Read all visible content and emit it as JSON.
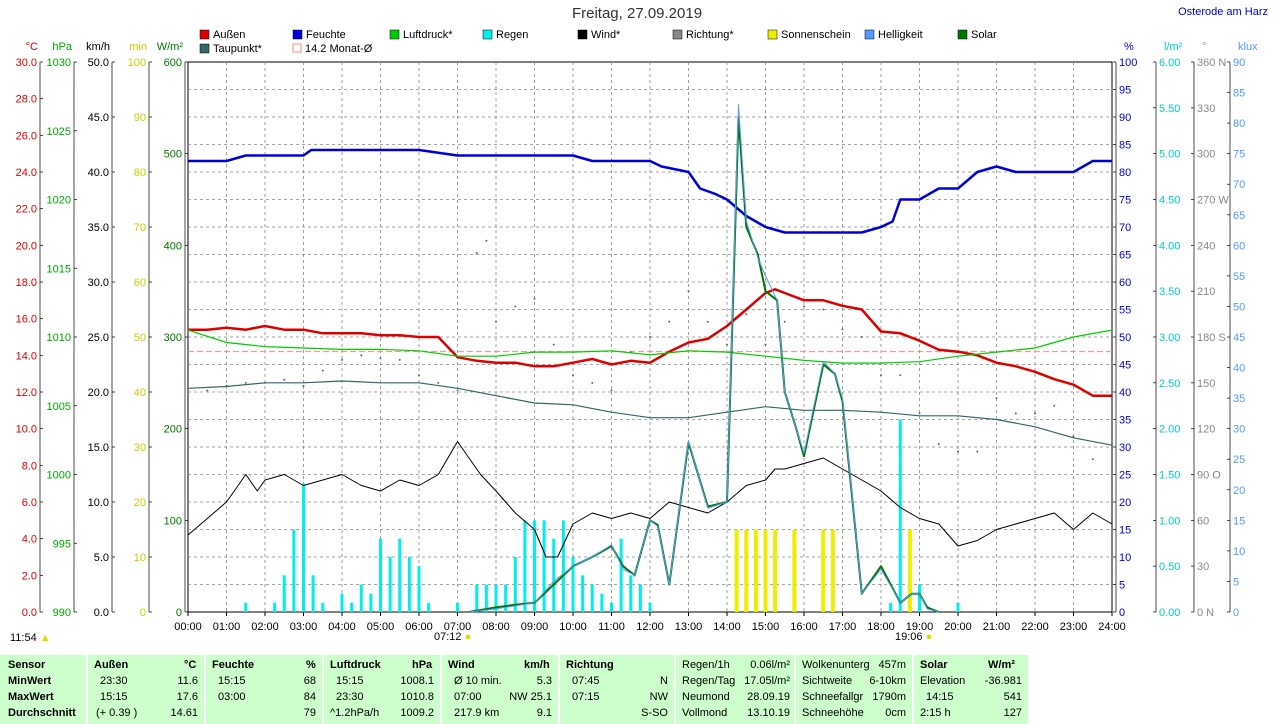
{
  "title": "Freitag, 27.09.2019",
  "location": "Osterode am Harz",
  "legend": [
    {
      "label": "Außen",
      "color": "#dd0000"
    },
    {
      "label": "Feuchte",
      "color": "#0000dd"
    },
    {
      "label": "Luftdruck*",
      "color": "#00cc00"
    },
    {
      "label": "Regen",
      "color": "#00eeee"
    },
    {
      "label": "Wind*",
      "color": "#000000"
    },
    {
      "label": "Richtung*",
      "color": "#888888"
    },
    {
      "label": "Sonnenschein",
      "color": "#eeee00"
    },
    {
      "label": "Helligkeit",
      "color": "#5599ff"
    },
    {
      "label": "Solar",
      "color": "#007700"
    },
    {
      "label": "Taupunkt*",
      "color": "#336666"
    },
    {
      "label": "14.2 Monat-Ø",
      "color": "#ff8888"
    }
  ],
  "axes_left": [
    {
      "unit": "°C",
      "color": "#dd0000",
      "ticks": [
        "30.0",
        "28.0",
        "26.0",
        "24.0",
        "22.0",
        "20.0",
        "18.0",
        "16.0",
        "14.0",
        "12.0",
        "10.0",
        "8.0",
        "6.0",
        "4.0",
        "2.0",
        "0.0"
      ]
    },
    {
      "unit": "hPa",
      "color": "#00aa00",
      "ticks": [
        "1030",
        "1025",
        "1020",
        "1015",
        "1010",
        "1005",
        "1000",
        "995",
        "990"
      ]
    },
    {
      "unit": "km/h",
      "color": "#000000",
      "ticks": [
        "50.0",
        "45.0",
        "40.0",
        "35.0",
        "30.0",
        "25.0",
        "20.0",
        "15.0",
        "10.0",
        "5.0",
        "0.0"
      ]
    },
    {
      "unit": "min",
      "color": "#cccc00",
      "ticks": [
        "100",
        "90",
        "80",
        "70",
        "60",
        "50",
        "40",
        "30",
        "20",
        "10",
        "0"
      ]
    },
    {
      "unit": "W/m²",
      "color": "#007700",
      "ticks": [
        "600",
        "500",
        "400",
        "300",
        "200",
        "100",
        "0"
      ]
    }
  ],
  "axes_right": [
    {
      "unit": "%",
      "color": "#0000dd",
      "ticks": [
        "100",
        "95",
        "90",
        "85",
        "80",
        "75",
        "70",
        "65",
        "60",
        "55",
        "50",
        "45",
        "40",
        "35",
        "30",
        "25",
        "20",
        "15",
        "10",
        "5",
        "0"
      ]
    },
    {
      "unit": "l/m²",
      "color": "#00cccc",
      "ticks": [
        "6.00",
        "5.50",
        "5.00",
        "4.50",
        "4.00",
        "3.50",
        "3.00",
        "2.50",
        "2.00",
        "1.50",
        "1.00",
        "0.50",
        "0.00"
      ]
    },
    {
      "unit": "°",
      "color": "#888888",
      "ticks": [
        "360 N",
        "330",
        "300",
        "270 W",
        "240",
        "210",
        "180 S",
        "150",
        "120",
        "90 O",
        "60",
        "30",
        "0 N"
      ]
    },
    {
      "unit": "klux",
      "color": "#5599ff",
      "ticks": [
        "90",
        "85",
        "80",
        "75",
        "70",
        "65",
        "60",
        "55",
        "50",
        "45",
        "40",
        "35",
        "30",
        "25",
        "20",
        "15",
        "10",
        "5",
        "0"
      ]
    }
  ],
  "x_ticks": [
    "00:00",
    "01:00",
    "02:00",
    "03:00",
    "04:00",
    "05:00",
    "06:00",
    "07:00",
    "08:00",
    "09:00",
    "10:00",
    "11:00",
    "12:00",
    "13:00",
    "14:00",
    "15:00",
    "16:00",
    "17:00",
    "18:00",
    "19:00",
    "20:00",
    "21:00",
    "22:00",
    "23:00",
    "24:00"
  ],
  "time_left": "11:54",
  "sunrise": "07:12",
  "sunset": "19:06",
  "chart_data": {
    "type": "line",
    "x_unit": "hour of day",
    "xlim": [
      0,
      24
    ],
    "series": [
      {
        "name": "Außen",
        "unit": "°C",
        "ylim": [
          0,
          30
        ],
        "x": [
          0,
          0.5,
          1,
          1.5,
          2,
          2.5,
          3,
          3.5,
          4,
          4.5,
          5,
          5.5,
          6,
          6.5,
          7,
          7.5,
          8,
          8.5,
          9,
          9.5,
          10,
          10.5,
          11,
          11.5,
          12,
          12.5,
          13,
          13.5,
          14,
          14.5,
          15,
          15.25,
          15.5,
          16,
          16.5,
          17,
          17.5,
          18,
          18.5,
          19,
          19.5,
          20,
          20.5,
          21,
          21.5,
          22,
          22.5,
          23,
          23.5,
          24
        ],
        "values": [
          15.4,
          15.4,
          15.5,
          15.4,
          15.6,
          15.4,
          15.4,
          15.2,
          15.2,
          15.2,
          15.1,
          15.1,
          15.0,
          15.0,
          13.9,
          13.7,
          13.6,
          13.6,
          13.4,
          13.4,
          13.6,
          13.8,
          13.5,
          13.7,
          13.6,
          14.2,
          14.7,
          14.9,
          15.6,
          16.5,
          17.4,
          17.6,
          17.4,
          17.0,
          17.0,
          16.7,
          16.5,
          15.3,
          15.2,
          14.8,
          14.3,
          14.2,
          14.0,
          13.6,
          13.4,
          13.1,
          12.7,
          12.4,
          11.8,
          11.8
        ]
      },
      {
        "name": "Feuchte",
        "unit": "%",
        "ylim": [
          0,
          100
        ],
        "x": [
          0,
          1,
          1.5,
          3,
          3.2,
          6,
          7,
          7.5,
          9,
          10,
          10.5,
          12,
          12.3,
          13,
          13.3,
          13.7,
          14,
          14.5,
          15,
          15.5,
          16,
          16.5,
          17,
          17.5,
          18,
          18.3,
          18.5,
          19,
          19.5,
          20,
          20.5,
          21,
          21.5,
          22,
          22.5,
          23,
          23.5,
          24
        ],
        "values": [
          82,
          82,
          83,
          83,
          84,
          84,
          83,
          83,
          83,
          83,
          82,
          82,
          81,
          80,
          77,
          76,
          75,
          72,
          70,
          69,
          69,
          69,
          69,
          69,
          70,
          71,
          75,
          75,
          77,
          77,
          80,
          81,
          80,
          80,
          80,
          80,
          82,
          82
        ]
      },
      {
        "name": "Luftdruck*",
        "unit": "hPa",
        "ylim": [
          990,
          1030
        ],
        "x": [
          0,
          1,
          2,
          3,
          4,
          5,
          6,
          7,
          8,
          9,
          10,
          11,
          12,
          13,
          14,
          15,
          16,
          17,
          18,
          19,
          20,
          21,
          22,
          23,
          24
        ],
        "values": [
          1010.5,
          1009.6,
          1009.3,
          1009.2,
          1009.1,
          1009.1,
          1009.0,
          1008.6,
          1008.6,
          1008.9,
          1008.9,
          1009.0,
          1008.7,
          1009.0,
          1008.9,
          1008.6,
          1008.3,
          1008.1,
          1008.1,
          1008.2,
          1008.6,
          1008.9,
          1009.2,
          1010.0,
          1010.5
        ]
      },
      {
        "name": "Taupunkt*",
        "unit": "°C",
        "ylim": [
          0,
          30
        ],
        "x": [
          0,
          1,
          2,
          3,
          4,
          5,
          6,
          7,
          8,
          9,
          10,
          11,
          12,
          13,
          14,
          15,
          16,
          17,
          18,
          19,
          20,
          21,
          22,
          23,
          24
        ],
        "values": [
          12.2,
          12.3,
          12.5,
          12.5,
          12.6,
          12.5,
          12.5,
          12.2,
          11.8,
          11.4,
          11.3,
          10.9,
          10.6,
          10.6,
          10.9,
          11.2,
          11.0,
          11.0,
          10.9,
          10.7,
          10.7,
          10.5,
          10.1,
          9.5,
          9.1
        ]
      },
      {
        "name": "Wind*",
        "unit": "km/h",
        "ylim": [
          0,
          50
        ],
        "x": [
          0,
          0.5,
          1,
          1.5,
          1.8,
          2,
          2.5,
          3,
          3.5,
          4,
          4.5,
          5,
          5.5,
          6,
          6.5,
          7,
          7.3,
          7.6,
          8,
          8.5,
          9,
          9.3,
          9.6,
          10,
          10.5,
          11,
          11.5,
          12,
          12.5,
          13,
          13.5,
          14,
          14.5,
          15,
          15.25,
          15.5,
          16,
          16.5,
          17,
          17.5,
          18,
          18.5,
          19,
          19.5,
          20,
          20.5,
          21,
          21.5,
          22,
          22.5,
          23,
          23.5,
          24
        ],
        "values": [
          7,
          8.5,
          10,
          12.5,
          11,
          12,
          12.5,
          11.5,
          12,
          12.5,
          11.5,
          11,
          12,
          11.5,
          12.5,
          15.5,
          14,
          12.5,
          11,
          9,
          7.5,
          5,
          5,
          8,
          9,
          8.5,
          9,
          8.5,
          10,
          9.5,
          9,
          10,
          11.5,
          12,
          13,
          13,
          13.5,
          14,
          13,
          12,
          11,
          9.5,
          8.5,
          8,
          6,
          6.5,
          7.5,
          8,
          8.5,
          9,
          7.5,
          9,
          8
        ]
      },
      {
        "name": "Solar",
        "unit": "W/m²",
        "ylim": [
          0,
          600
        ],
        "x": [
          7.3,
          8,
          8.5,
          9,
          9.5,
          10,
          10.5,
          11,
          11.3,
          11.6,
          12,
          12.2,
          12.5,
          13,
          13.5,
          14,
          14.3,
          14.5,
          14.8,
          15,
          15.3,
          15.5,
          15.8,
          16,
          16.2,
          16.5,
          16.8,
          17,
          17.5,
          18,
          18.5,
          18.8,
          19,
          19.2,
          19.5
        ],
        "values": [
          0,
          5,
          8,
          10,
          30,
          50,
          60,
          72,
          50,
          40,
          100,
          95,
          30,
          185,
          115,
          120,
          540,
          420,
          390,
          350,
          340,
          240,
          200,
          170,
          210,
          270,
          260,
          230,
          20,
          50,
          10,
          20,
          20,
          5,
          0
        ]
      },
      {
        "name": "Helligkeit",
        "unit": "klux",
        "ylim": [
          0,
          90
        ],
        "x": [
          7.3,
          8,
          8.5,
          9,
          9.5,
          10,
          10.5,
          11,
          11.3,
          11.6,
          12,
          12.2,
          12.5,
          13,
          13.5,
          14,
          14.3,
          14.5,
          14.8,
          15,
          15.3,
          15.5,
          15.8,
          16,
          16.2,
          16.5,
          16.8,
          17,
          17.5,
          18,
          18.5,
          18.8,
          19,
          19.2,
          19.5
        ],
        "values": [
          0,
          0.5,
          1,
          1.5,
          5,
          7.5,
          9,
          11,
          7,
          6,
          15,
          14,
          4.5,
          28,
          17,
          18,
          83,
          64,
          58,
          55,
          51,
          36,
          30,
          26,
          32,
          41,
          39,
          35,
          3,
          7,
          1.5,
          3,
          3,
          0.5,
          0
        ]
      }
    ],
    "bars": [
      {
        "name": "Regen",
        "unit": "l/m²",
        "ylim": [
          0,
          6
        ],
        "x": [
          1.5,
          2.25,
          2.5,
          2.75,
          3,
          3.25,
          3.5,
          4,
          4.25,
          4.5,
          4.75,
          5,
          5.25,
          5.5,
          5.75,
          6,
          6.25,
          7,
          7.5,
          7.75,
          8,
          8.25,
          8.5,
          8.75,
          9,
          9.25,
          9.5,
          9.75,
          10,
          10.25,
          10.5,
          10.75,
          11,
          11.25,
          11.5,
          11.75,
          12,
          18.25,
          18.5,
          19,
          20
        ],
        "values": [
          0.1,
          0.1,
          0.4,
          0.9,
          1.4,
          0.4,
          0.1,
          0.2,
          0.1,
          0.3,
          0.2,
          0.8,
          0.6,
          0.8,
          0.6,
          0.5,
          0.1,
          0.1,
          0.3,
          0.3,
          0.3,
          0.3,
          0.6,
          1.0,
          1.0,
          1.0,
          0.8,
          1.0,
          0.6,
          0.4,
          0.3,
          0.2,
          0.1,
          0.8,
          0.4,
          0.3,
          0.1,
          0.1,
          2.1,
          0.3,
          0.1
        ]
      },
      {
        "name": "Sonnenschein",
        "unit": "min",
        "ylim": [
          0,
          100
        ],
        "x": [
          14.25,
          14.5,
          14.75,
          15,
          15.25,
          15.75,
          16.5,
          16.75,
          18.75
        ],
        "values": [
          15,
          15,
          15,
          15,
          15,
          15,
          15,
          15,
          15
        ]
      }
    ],
    "scatter": [
      {
        "name": "Richtung*",
        "unit": "°",
        "ylim": [
          0,
          360
        ],
        "x": [
          0.5,
          1,
          1.5,
          2,
          2.5,
          3,
          3.5,
          4,
          4.5,
          5,
          5.5,
          6,
          6.5,
          7,
          7.5,
          7.75,
          8,
          8.5,
          9,
          9.5,
          10,
          10.5,
          11,
          11.5,
          12,
          12.5,
          13,
          13.5,
          14,
          14.5,
          15,
          15.5,
          16,
          16.5,
          17,
          17.5,
          18,
          18.5,
          19,
          19.5,
          20,
          20.5,
          21,
          21.5,
          22,
          22.5,
          23,
          23.5
        ],
        "values": [
          145,
          148,
          150,
          150,
          152,
          148,
          158,
          165,
          168,
          166,
          165,
          155,
          150,
          145,
          235,
          243,
          190,
          200,
          205,
          175,
          155,
          150,
          145,
          170,
          180,
          190,
          210,
          190,
          175,
          195,
          175,
          190,
          200,
          198,
          185,
          180,
          155,
          155,
          130,
          110,
          105,
          105,
          140,
          130,
          130,
          135,
          115,
          100
        ]
      }
    ],
    "reference": {
      "name": "14.2 Monat-Ø",
      "unit": "°C",
      "value": 14.2
    }
  },
  "footer": {
    "sensor": {
      "label": "Sensor",
      "min": "MinWert",
      "max": "MaxWert",
      "avg": "Durchschnitt"
    },
    "aussen": {
      "label": "Außen",
      "unit": "°C",
      "min_time": "23:30",
      "min_val": "11.6",
      "max_time": "15:15",
      "max_val": "17.6",
      "avg_note": "(+ 0.39 )",
      "avg_val": "14.61"
    },
    "feuchte": {
      "label": "Feuchte",
      "unit": "%",
      "min_time": "15:15",
      "min_val": "68",
      "max_time": "03:00",
      "max_val": "84",
      "avg_val": "79"
    },
    "luftdruck": {
      "label": "Luftdruck",
      "unit": "hPa",
      "min_time": "15:15",
      "min_val": "1008.1",
      "max_time": "23:30",
      "max_val": "1010.8",
      "avg_note": "^1.2hPa/h",
      "avg_val": "1009.2"
    },
    "wind": {
      "label": "Wind",
      "unit": "km/h",
      "r1_label": "Ø 10 min.",
      "r1_val": "5.3",
      "r2_time": "07:00",
      "r2_val": "NW 25.1",
      "r3_label": "217.9 km",
      "r3_val": "9.1"
    },
    "richtung": {
      "label": "Richtung",
      "r1_time": "07:45",
      "r1_val": "N",
      "r2_time": "07:15",
      "r2_val": "NW",
      "r3_val": "S-SO"
    },
    "regen": {
      "r0_label": "Regen/1h",
      "r0_val": "0.06l/m²",
      "r1_label": "Regen/Tag",
      "r1_val": "17.05l/m²",
      "r2_label": "Neumond",
      "r2_val": "28.09.19",
      "r3_label": "Vollmond",
      "r3_val": "13.10.19"
    },
    "wolken": {
      "r0_label": "Wolkenunterg",
      "r0_val": "457m",
      "r1_label": "Sichtweite",
      "r1_val": "6-10km",
      "r2_label": "Schneefallgr",
      "r2_val": "1790m",
      "r3_label": "Schneehöhe",
      "r3_val": "0cm"
    },
    "solar": {
      "label": "Solar",
      "unit": "W/m²",
      "r1_label": "Elevation",
      "r1_val": "-36.981",
      "r2_time": "14:15",
      "r2_val": "541",
      "r3_label": "2:15 h",
      "r3_val": "127"
    }
  }
}
